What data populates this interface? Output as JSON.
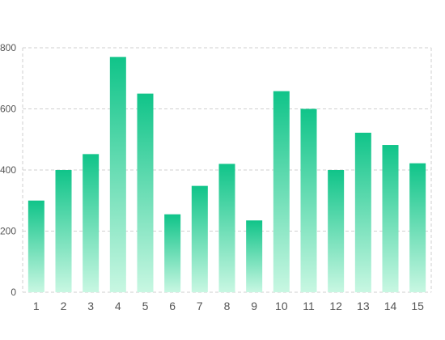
{
  "colors": {
    "bar_top": "#10C489",
    "bar_bottom": "#C8F7E2",
    "grid": "#cfcfcf",
    "axis_text": "#555555"
  },
  "chart_data": {
    "type": "bar",
    "categories": [
      "1",
      "2",
      "3",
      "4",
      "5",
      "6",
      "7",
      "8",
      "9",
      "10",
      "11",
      "12",
      "13",
      "14",
      "15"
    ],
    "values": [
      300,
      400,
      452,
      770,
      650,
      255,
      348,
      420,
      235,
      658,
      600,
      400,
      522,
      482,
      422
    ],
    "ylim": [
      0,
      800
    ],
    "yticks": [
      0,
      200,
      400,
      600,
      800
    ],
    "ytick_labels": [
      "0",
      "200",
      "400",
      "600",
      "800"
    ],
    "grid": true,
    "title": "",
    "xlabel": "",
    "ylabel": ""
  }
}
